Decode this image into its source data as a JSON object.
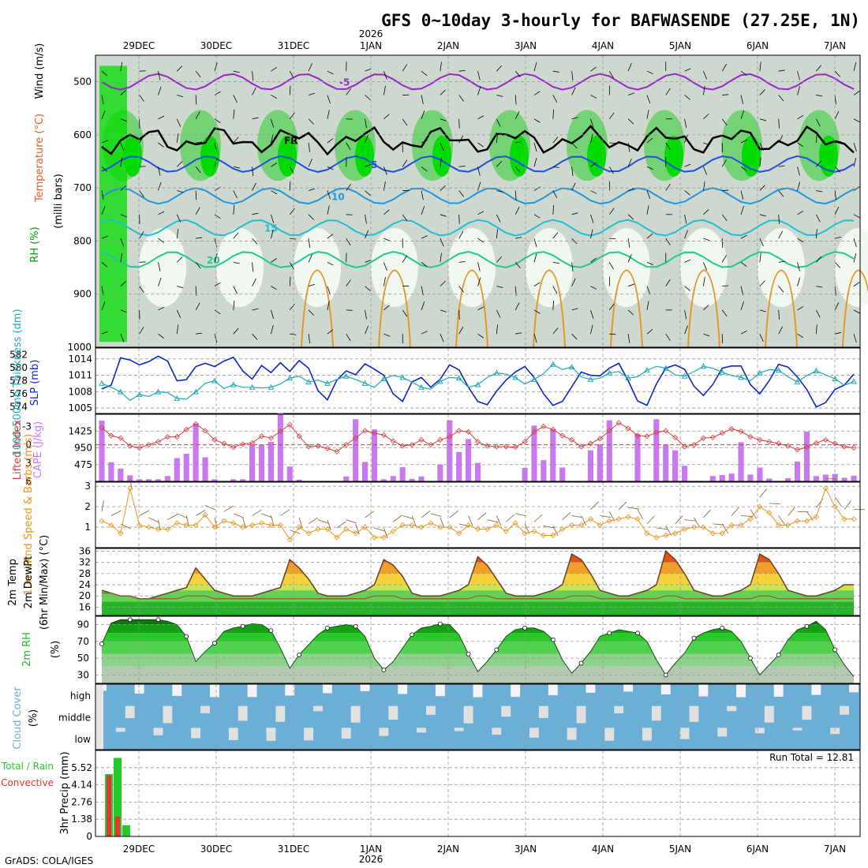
{
  "title": "GFS 0~10day 3-hourly for BAFWASENDE (27.25E, 1N)",
  "footer": "GrADS: COLA/IGES",
  "run_total": "Run Total = 12.81",
  "colors": {
    "rh_green": "#00dc00",
    "temp_orange": "#f08c28",
    "slp_blue": "#0a28c8",
    "thick_cyan": "#1eaab4",
    "li_red": "#dc3c3c",
    "cape_purple": "#c878f0",
    "wind_orange": "#e6961e",
    "cloud_blue": "#6baed6",
    "cloud_grey": "#e0e0e0",
    "precip_green": "#28c828",
    "precip_red": "#e63232"
  },
  "chart_data": [
    {
      "type": "heatmap",
      "panel": "upper-air cross section",
      "ylabel": "(milli bars)",
      "legend_labels": [
        "RH (%)",
        "Temperature (°C)",
        "Wind (m/s)"
      ],
      "x_dates_top": [
        "29DEC",
        "30DEC",
        "31DEC",
        "1JAN",
        "2JAN",
        "3JAN",
        "4JAN",
        "5JAN",
        "6JAN",
        "7JAN"
      ],
      "year_label": "2026",
      "y_ticks": [
        500,
        600,
        700,
        800,
        900,
        1000
      ],
      "ylim": [
        1000,
        450
      ],
      "isotherm_labels": [
        "-5",
        "FR",
        "5",
        "10",
        "15",
        "20"
      ]
    },
    {
      "type": "line",
      "panel": "SLP and 1000-500mb thickness",
      "ylabel_left": "1000-500mb Thickness (dm)",
      "ylabel_right": "SLP (mb)",
      "thickness_ticks": [
        574,
        576,
        578,
        580,
        582
      ],
      "slp_ticks": [
        1005,
        1008,
        1011,
        1014
      ],
      "series": [
        {
          "name": "SLP",
          "values": [
            1008.5,
            1009.2,
            1014.2,
            1013.8,
            1012.9,
            1013.5,
            1014.5,
            1013.6,
            1010.0,
            1010.2,
            1012.6,
            1013.2,
            1012.6,
            1013.6,
            1014.3,
            1011.8,
            1010.3,
            1012.8,
            1011.5,
            1013.3,
            1011.7,
            1013.7,
            1012.3,
            1008.2,
            1006.5,
            1010.1,
            1011.8,
            1011.1,
            1013.1,
            1012.1,
            1011.0,
            1007.6,
            1006.2,
            1009.8,
            1010.6,
            1008.8,
            1010.3,
            1012.9,
            1012.0,
            1008.8,
            1006.2,
            1005.6,
            1008.1,
            1010.1,
            1011.6,
            1012.6,
            1010.6,
            1007.6,
            1005.5,
            1006.2,
            1008.9,
            1011.6,
            1011.0,
            1010.9,
            1012.3,
            1013.2,
            1010.0,
            1006.3,
            1005.5,
            1009.4,
            1012.3,
            1012.9,
            1012.1,
            1009.0,
            1007.3,
            1009.3,
            1012.3,
            1012.7,
            1012.7,
            1009.3,
            1007.6,
            1010.0,
            1013.0,
            1012.5,
            1010.7,
            1008.4,
            1005.2,
            1006.0,
            1008.4,
            1009.2,
            1011.2
          ]
        },
        {
          "name": "Thickness",
          "values": [
            577.6,
            577.0,
            576.3,
            575.0,
            575.9,
            575.6,
            576.3,
            576.2,
            575.3,
            575.2,
            576.3,
            577.6,
            578.0,
            576.8,
            577.4,
            577.0,
            577.0,
            576.9,
            577.0,
            577.5,
            578.4,
            578.7,
            577.8,
            578.1,
            577.6,
            578.2,
            578.7,
            578.2,
            577.6,
            577.0,
            578.3,
            578.8,
            578.5,
            577.8,
            577.0,
            576.7,
            577.9,
            578.5,
            578.4,
            577.0,
            577.4,
            578.5,
            579.2,
            579.0,
            578.5,
            577.5,
            578.2,
            579.1,
            580.5,
            579.7,
            580.1,
            578.6,
            578.2,
            578.4,
            579.2,
            579.4,
            578.4,
            578.6,
            579.6,
            580.2,
            579.9,
            578.9,
            578.7,
            579.4,
            580.2,
            579.9,
            579.3,
            578.8,
            578.5,
            578.0,
            579.2,
            579.7,
            579.6,
            578.6,
            577.8,
            578.8,
            579.5,
            578.9,
            578.3,
            577.3,
            577.9
          ]
        }
      ]
    },
    {
      "type": "bar",
      "panel": "CAPE and Lifted Index",
      "ylabel_left": "Lifted Index",
      "ylabel_right": "CAPE (J/kg)",
      "li_ticks": [
        "-3",
        "0",
        "3",
        "6"
      ],
      "cape_ticks": [
        475,
        950,
        1425
      ],
      "series": [
        {
          "name": "CAPE",
          "values": [
            1720,
            540,
            360,
            170,
            60,
            60,
            60,
            150,
            660,
            780,
            1640,
            680,
            60,
            0,
            60,
            60,
            1040,
            1040,
            1120,
            1930,
            420,
            50,
            0,
            0,
            0,
            0,
            140,
            1760,
            550,
            1470,
            60,
            150,
            400,
            70,
            140,
            0,
            480,
            1730,
            830,
            1200,
            520,
            0,
            0,
            0,
            0,
            380,
            1580,
            600,
            1480,
            390,
            0,
            0,
            880,
            1050,
            1730,
            0,
            0,
            1340,
            0,
            1760,
            1040,
            880,
            440,
            0,
            0,
            150,
            180,
            220,
            1110,
            190,
            390,
            80,
            0,
            90,
            560,
            1410,
            150,
            190,
            210,
            100,
            160
          ]
        },
        {
          "name": "Lifted Index",
          "values": [
            -2.8,
            -1.5,
            -1.1,
            0.2,
            0.5,
            0.0,
            -0.5,
            -1.3,
            -1.3,
            -2.5,
            -3.4,
            -2.3,
            -0.8,
            -0.2,
            0.4,
            -0.1,
            -0.3,
            -1.4,
            -1.1,
            -2.2,
            -3.3,
            -1.4,
            0.3,
            0.2,
            0.6,
            1.1,
            0.0,
            -1.1,
            -2.3,
            -1.9,
            -1.6,
            -0.6,
            0.2,
            0.0,
            -0.8,
            0.0,
            -0.8,
            -1.3,
            -2.3,
            -2.1,
            -0.5,
            0.2,
            0.3,
            0.3,
            0.4,
            -0.5,
            -2.1,
            -3.0,
            -2.5,
            -1.5,
            -0.8,
            0.3,
            -0.2,
            -1.0,
            -2.3,
            -3.6,
            -2.7,
            -1.5,
            -1.4,
            -2.0,
            -2.3,
            -1.2,
            0.3,
            0.0,
            -1.1,
            -1.2,
            -1.9,
            -2.6,
            -2.2,
            -1.3,
            -0.8,
            -0.5,
            -0.2,
            0.2,
            0.8,
            0.4,
            -0.3,
            -0.8,
            -0.2,
            0.3,
            0.5
          ]
        }
      ]
    },
    {
      "type": "line",
      "panel": "10m Wind",
      "ylabel": "10m Wind Speed & Barbs (m/s)",
      "y_ticks": [
        1,
        2,
        3
      ],
      "series": [
        {
          "name": "10m Wind Speed",
          "values": [
            1.3,
            1.1,
            0.7,
            2.9,
            1.1,
            1.0,
            0.9,
            0.9,
            1.2,
            1.1,
            1.1,
            1.6,
            1.0,
            1.3,
            1.2,
            1.0,
            1.1,
            1.2,
            1.1,
            1.1,
            0.4,
            1.0,
            0.7,
            0.9,
            0.9,
            0.5,
            0.9,
            0.7,
            1.0,
            0.5,
            0.5,
            0.8,
            1.1,
            1.1,
            1.0,
            1.2,
            1.0,
            1.0,
            0.7,
            1.1,
            0.9,
            0.9,
            1.1,
            0.8,
            1.2,
            0.7,
            0.8,
            0.6,
            0.6,
            0.9,
            1.1,
            1.1,
            1.4,
            1.1,
            1.3,
            1.4,
            1.5,
            1.4,
            0.7,
            0.5,
            0.6,
            0.7,
            0.9,
            1.0,
            1.0,
            0.7,
            0.7,
            1.1,
            1.1,
            1.4,
            2.0,
            1.7,
            1.1,
            1.1,
            1.3,
            1.3,
            1.5,
            2.9,
            2.0,
            1.4,
            1.4
          ]
        }
      ]
    },
    {
      "type": "area",
      "panel": "2m Temp / DewPt",
      "ylabel": "2m Temp 2m DewPt (6hr Min/Max) (°C)",
      "y_ticks": [
        16,
        20,
        24,
        28,
        32,
        36
      ],
      "series": [
        {
          "name": "2m Temp",
          "values": [
            22,
            21,
            20,
            20,
            19,
            19,
            20,
            21,
            22,
            23,
            30,
            26,
            22,
            21,
            20,
            20,
            20,
            21,
            22,
            23,
            33,
            30,
            26,
            21,
            20,
            20,
            20,
            21,
            22,
            24,
            33,
            31,
            27,
            21,
            20,
            20,
            20,
            21,
            22,
            24,
            34,
            31,
            26,
            21,
            20,
            20,
            20,
            21,
            22,
            24,
            35,
            33,
            28,
            22,
            21,
            20,
            20,
            21,
            22,
            24,
            36,
            33,
            28,
            22,
            21,
            20,
            20,
            21,
            22,
            24,
            35,
            33,
            28,
            22,
            21,
            20,
            20,
            21,
            22,
            24,
            24
          ]
        },
        {
          "name": "2m DewPt",
          "values": [
            21,
            21,
            20,
            20,
            19,
            19,
            19,
            19,
            19,
            20,
            20,
            20,
            19,
            19,
            19,
            19,
            19,
            19,
            19,
            19,
            19,
            19,
            19,
            19,
            19,
            19,
            19,
            19,
            19,
            20,
            20,
            20,
            19,
            19,
            19,
            19,
            19,
            19,
            19,
            19,
            20,
            20,
            19,
            19,
            19,
            19,
            19,
            19,
            19,
            19,
            20,
            20,
            20,
            19,
            19,
            19,
            19,
            19,
            19,
            19,
            20,
            20,
            19,
            19,
            19,
            19,
            19,
            19,
            19,
            19,
            20,
            20,
            19,
            19,
            19,
            19,
            19,
            19,
            19,
            19,
            19
          ]
        }
      ]
    },
    {
      "type": "area",
      "panel": "2m RH",
      "ylabel": "2m RH (%)",
      "y_ticks": [
        30,
        50,
        70,
        90
      ],
      "series": [
        {
          "name": "2m RH",
          "values": [
            67,
            92,
            96,
            96,
            96,
            96,
            96,
            94,
            90,
            76,
            46,
            58,
            68,
            82,
            86,
            88,
            91,
            90,
            83,
            62,
            38,
            54,
            66,
            78,
            86,
            88,
            90,
            88,
            76,
            50,
            36,
            46,
            62,
            78,
            86,
            88,
            91,
            90,
            78,
            55,
            34,
            46,
            60,
            76,
            84,
            86,
            86,
            82,
            72,
            48,
            32,
            44,
            58,
            76,
            80,
            84,
            82,
            80,
            70,
            48,
            30,
            44,
            56,
            74,
            80,
            84,
            86,
            82,
            70,
            50,
            30,
            42,
            54,
            72,
            84,
            88,
            94,
            84,
            60,
            42,
            28
          ]
        }
      ]
    },
    {
      "type": "bar",
      "panel": "Cloud Cover",
      "ylabel": "Cloud Cover (%)",
      "layers": [
        "high",
        "middle",
        "low"
      ]
    },
    {
      "type": "bar",
      "panel": "3hr Precip",
      "ylabel": "3hr Precip (mm)",
      "legend_labels": [
        "Total / Rain",
        "Convective"
      ],
      "y_ticks": [
        "0",
        "1.38",
        "2.76",
        "4.14",
        "5.52"
      ],
      "series": [
        {
          "name": "Total",
          "values": [
            5.0,
            6.3,
            0.9
          ]
        },
        {
          "name": "Convective",
          "values": [
            4.9,
            1.6,
            0.0
          ]
        }
      ],
      "x_dates": [
        "29DEC",
        "30DEC",
        "31DEC",
        "1JAN",
        "2JAN",
        "3JAN",
        "4JAN",
        "5JAN",
        "6JAN",
        "7JAN"
      ]
    }
  ]
}
